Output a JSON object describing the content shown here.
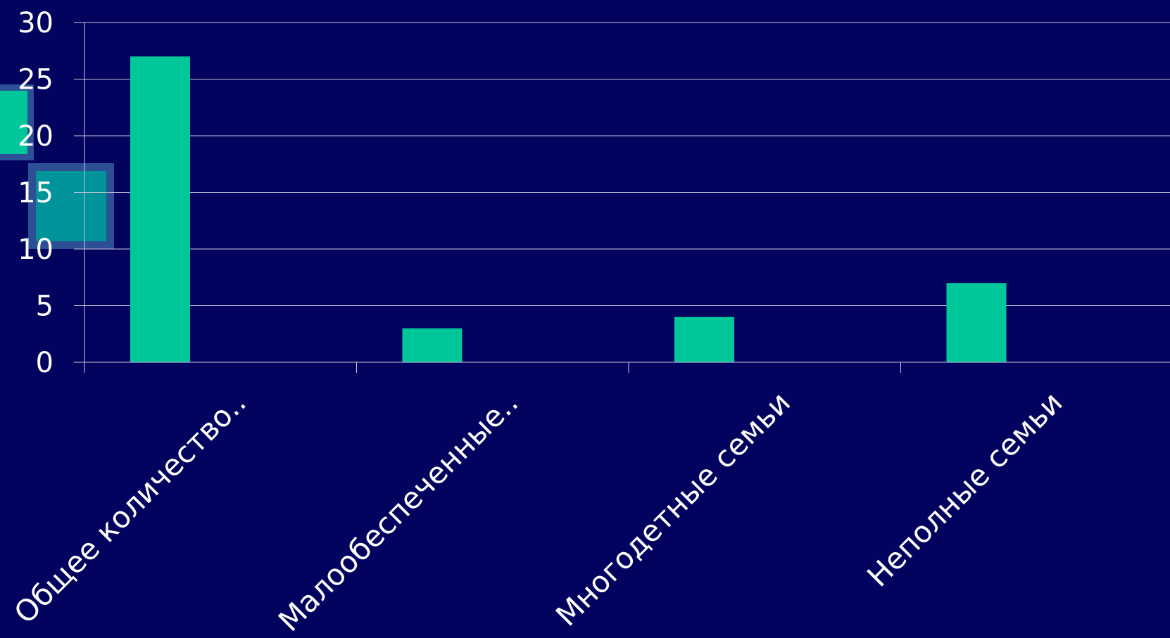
{
  "colors": {
    "background": "#02025f",
    "bar": "#00c79a",
    "grid": "#c9c9d8",
    "axis": "#c9c9d8",
    "text": "#ffffff",
    "deco_frame": "#2d4f95",
    "deco_fill_a": "#00c79a",
    "deco_fill_b": "#00939a"
  },
  "chart_data": {
    "type": "bar",
    "categories": [
      "Общее количество..",
      "Малообеспеченные..",
      "Многодетные семьи",
      "Неполные семьи"
    ],
    "values": [
      27,
      3,
      4,
      7
    ],
    "title": "",
    "xlabel": "",
    "ylabel": "",
    "ylim": [
      0,
      30
    ],
    "yticks": [
      0,
      5,
      10,
      15,
      20,
      25,
      30
    ],
    "grid": true,
    "legend": "none"
  }
}
